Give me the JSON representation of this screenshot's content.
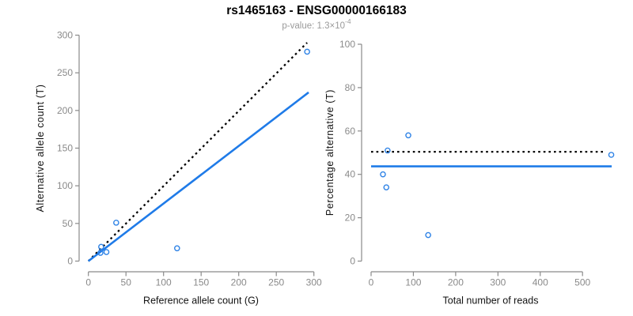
{
  "figure": {
    "title": "rs1465163 - ENSG00000166183",
    "subtitle_prefix": "p-value: 1.3×10",
    "subtitle_exponent": "-4"
  },
  "colors": {
    "line_blue": "#1f7be8",
    "point_blue": "#2f83e6",
    "dotted_line": "#000000",
    "axis_gray": "#8a8a8a",
    "tick_text_gray": "#8a8a8a",
    "axis_title_black": "#121212",
    "subtitle_gray": "#9a9a9a",
    "background": "#ffffff"
  },
  "chart_data": [
    {
      "type": "scatter",
      "name": "allele-counts-scatter",
      "xlabel": "Reference allele count (G)",
      "ylabel": "Alternative allele count (T)",
      "xlim": [
        0,
        300
      ],
      "ylim": [
        0,
        300
      ],
      "xticks": [
        0,
        50,
        100,
        150,
        200,
        250,
        300
      ],
      "yticks": [
        0,
        50,
        100,
        150,
        200,
        250,
        300
      ],
      "grid": false,
      "legend": false,
      "points": [
        [
          16,
          11
        ],
        [
          17,
          19
        ],
        [
          24,
          12
        ],
        [
          37,
          51
        ],
        [
          118,
          17
        ],
        [
          291,
          278
        ]
      ],
      "lines": [
        {
          "name": "identity-line",
          "style": "dotted",
          "x1": 0,
          "y1": 0,
          "x2": 291,
          "y2": 290
        },
        {
          "name": "regression-line",
          "style": "solid",
          "x1": 0,
          "y1": 0,
          "x2": 293,
          "y2": 224
        }
      ]
    },
    {
      "type": "scatter",
      "name": "percentage-vs-reads-scatter",
      "xlabel": "Total number of reads",
      "ylabel": "Percentage alternative (T)",
      "xlim": [
        0,
        575
      ],
      "ylim": [
        0,
        100
      ],
      "xticks": [
        0,
        100,
        200,
        300,
        400,
        500
      ],
      "yticks": [
        0,
        20,
        40,
        60,
        80,
        100
      ],
      "grid": false,
      "legend": false,
      "points": [
        [
          28,
          40
        ],
        [
          36,
          34
        ],
        [
          39,
          51
        ],
        [
          88,
          58
        ],
        [
          135,
          12
        ],
        [
          568,
          49
        ]
      ],
      "lines": [
        {
          "name": "fifty-percent-line",
          "style": "dotted",
          "x1": 0,
          "y1": 50.4,
          "x2": 554,
          "y2": 50.4
        },
        {
          "name": "mean-percentage-line",
          "style": "solid",
          "x1": 0,
          "y1": 43.7,
          "x2": 569,
          "y2": 43.7
        }
      ]
    }
  ]
}
